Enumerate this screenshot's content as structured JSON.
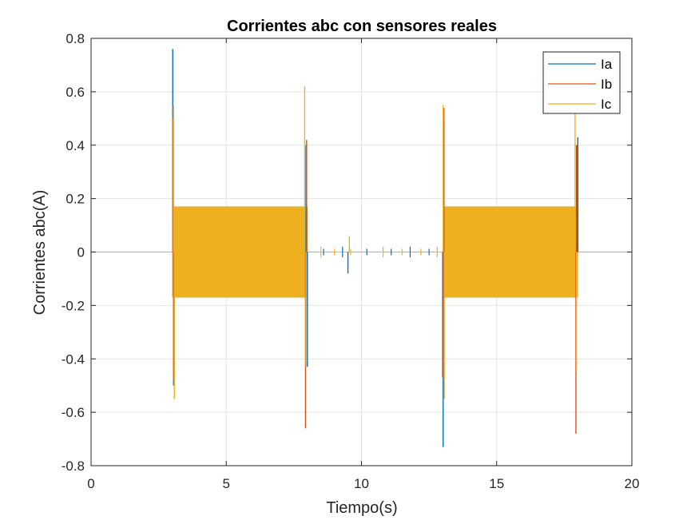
{
  "chart_data": {
    "type": "line",
    "title": "Corrientes abc con sensores reales",
    "xlabel": "Tiempo(s)",
    "ylabel": "Corrientes abc(A)",
    "xlim": [
      0,
      20
    ],
    "ylim": [
      -0.8,
      0.8
    ],
    "x_ticks": [
      0,
      5,
      10,
      15,
      20
    ],
    "x_tick_labels": [
      "0",
      "5",
      "10",
      "15",
      "20"
    ],
    "y_ticks": [
      0.8,
      0.6,
      0.4,
      0.2,
      0,
      -0.2,
      -0.4,
      -0.6,
      -0.8
    ],
    "y_tick_labels": [
      "0.8",
      "0.6",
      "0.4",
      "0.2",
      "0",
      "-0.2",
      "-0.4",
      "-0.6",
      "-0.8"
    ],
    "grid": true,
    "legend_position": "top-right",
    "series": [
      {
        "name": "Ia",
        "color": "#0072BD",
        "active_intervals": [
          [
            3.0,
            8.0
          ],
          [
            13.0,
            18.0
          ]
        ],
        "amplitude": 0.17,
        "spikes": [
          {
            "x": 3.02,
            "y": 0.76
          },
          {
            "x": 3.05,
            "y": -0.5
          },
          {
            "x": 7.95,
            "y": 0.4
          },
          {
            "x": 8.0,
            "y": -0.43
          },
          {
            "x": 9.5,
            "y": -0.08
          },
          {
            "x": 13.02,
            "y": -0.73
          },
          {
            "x": 13.05,
            "y": 0.5
          },
          {
            "x": 17.95,
            "y": 0.4
          },
          {
            "x": 18.0,
            "y": 0.43
          }
        ]
      },
      {
        "name": "Ib",
        "color": "#D95319",
        "active_intervals": [
          [
            3.0,
            8.0
          ],
          [
            13.0,
            18.0
          ]
        ],
        "amplitude": 0.17,
        "spikes": [
          {
            "x": 3.02,
            "y": 0.5
          },
          {
            "x": 3.05,
            "y": -0.48
          },
          {
            "x": 7.93,
            "y": -0.66
          },
          {
            "x": 7.97,
            "y": 0.42
          },
          {
            "x": 13.0,
            "y": -0.47
          },
          {
            "x": 13.05,
            "y": 0.54
          },
          {
            "x": 17.93,
            "y": -0.68
          },
          {
            "x": 17.97,
            "y": 0.4
          }
        ]
      },
      {
        "name": "Ic",
        "color": "#EDB120",
        "active_intervals": [
          [
            3.0,
            8.0
          ],
          [
            13.0,
            18.0
          ]
        ],
        "amplitude": 0.17,
        "spikes": [
          {
            "x": 3.05,
            "y": 0.55
          },
          {
            "x": 3.08,
            "y": -0.55
          },
          {
            "x": 7.9,
            "y": 0.62
          },
          {
            "x": 7.95,
            "y": -0.43
          },
          {
            "x": 9.55,
            "y": 0.06
          },
          {
            "x": 13.02,
            "y": 0.55
          },
          {
            "x": 13.06,
            "y": -0.55
          },
          {
            "x": 17.9,
            "y": 0.52
          },
          {
            "x": 17.95,
            "y": -0.45
          }
        ]
      }
    ],
    "idle_blips": [
      8.5,
      8.6,
      9.0,
      9.3,
      9.6,
      10.2,
      10.8,
      11.1,
      11.5,
      11.8,
      12.2,
      12.5,
      12.8
    ]
  }
}
